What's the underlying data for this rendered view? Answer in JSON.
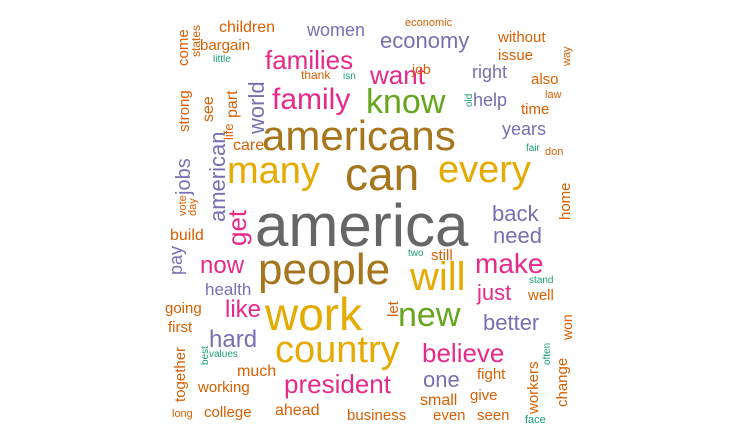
{
  "colors": {
    "gray": "#666666",
    "brown": "#A6761D",
    "gold": "#E6AB02",
    "pink": "#E7298A",
    "green": "#66A61E",
    "purple": "#7570B3",
    "orange": "#D95F02",
    "teal": "#1B9E77"
  },
  "words": [
    {
      "text": "america",
      "color": "gray"
    },
    {
      "text": "americans",
      "color": "brown"
    },
    {
      "text": "people",
      "color": "brown"
    },
    {
      "text": "can",
      "color": "brown"
    },
    {
      "text": "many",
      "color": "gold"
    },
    {
      "text": "every",
      "color": "gold"
    },
    {
      "text": "work",
      "color": "gold"
    },
    {
      "text": "will",
      "color": "gold"
    },
    {
      "text": "country",
      "color": "gold"
    },
    {
      "text": "know",
      "color": "green"
    },
    {
      "text": "new",
      "color": "green"
    },
    {
      "text": "family",
      "color": "pink"
    },
    {
      "text": "families",
      "color": "pink"
    },
    {
      "text": "want",
      "color": "pink"
    },
    {
      "text": "make",
      "color": "pink"
    },
    {
      "text": "president",
      "color": "pink"
    },
    {
      "text": "believe",
      "color": "pink"
    },
    {
      "text": "now",
      "color": "pink"
    },
    {
      "text": "get",
      "color": "pink"
    },
    {
      "text": "like",
      "color": "pink"
    },
    {
      "text": "just",
      "color": "pink"
    },
    {
      "text": "economy",
      "color": "purple"
    },
    {
      "text": "back",
      "color": "purple"
    },
    {
      "text": "need",
      "color": "purple"
    },
    {
      "text": "hard",
      "color": "purple"
    },
    {
      "text": "better",
      "color": "purple"
    },
    {
      "text": "one",
      "color": "purple"
    },
    {
      "text": "american",
      "color": "purple"
    },
    {
      "text": "world",
      "color": "purple"
    },
    {
      "text": "women",
      "color": "purple"
    },
    {
      "text": "help",
      "color": "purple"
    },
    {
      "text": "right",
      "color": "purple"
    },
    {
      "text": "years",
      "color": "purple"
    },
    {
      "text": "jobs",
      "color": "purple"
    },
    {
      "text": "health",
      "color": "purple"
    },
    {
      "text": "pay",
      "color": "purple"
    },
    {
      "text": "children",
      "color": "orange"
    },
    {
      "text": "bargain",
      "color": "orange"
    },
    {
      "text": "come",
      "color": "orange"
    },
    {
      "text": "states",
      "color": "orange"
    },
    {
      "text": "see",
      "color": "orange"
    },
    {
      "text": "part",
      "color": "orange"
    },
    {
      "text": "life",
      "color": "orange"
    },
    {
      "text": "care",
      "color": "orange"
    },
    {
      "text": "strong",
      "color": "orange"
    },
    {
      "text": "economic",
      "color": "orange"
    },
    {
      "text": "thank",
      "color": "orange"
    },
    {
      "text": "job",
      "color": "orange"
    },
    {
      "text": "without",
      "color": "orange"
    },
    {
      "text": "issue",
      "color": "orange"
    },
    {
      "text": "way",
      "color": "orange"
    },
    {
      "text": "also",
      "color": "orange"
    },
    {
      "text": "law",
      "color": "orange"
    },
    {
      "text": "time",
      "color": "orange"
    },
    {
      "text": "don",
      "color": "orange"
    },
    {
      "text": "home",
      "color": "orange"
    },
    {
      "text": "vote",
      "color": "orange"
    },
    {
      "text": "day",
      "color": "orange"
    },
    {
      "text": "build",
      "color": "orange"
    },
    {
      "text": "still",
      "color": "orange"
    },
    {
      "text": "let",
      "color": "orange"
    },
    {
      "text": "well",
      "color": "orange"
    },
    {
      "text": "going",
      "color": "orange"
    },
    {
      "text": "first",
      "color": "orange"
    },
    {
      "text": "together",
      "color": "orange"
    },
    {
      "text": "much",
      "color": "orange"
    },
    {
      "text": "working",
      "color": "orange"
    },
    {
      "text": "long",
      "color": "orange"
    },
    {
      "text": "college",
      "color": "orange"
    },
    {
      "text": "ahead",
      "color": "orange"
    },
    {
      "text": "business",
      "color": "orange"
    },
    {
      "text": "small",
      "color": "orange"
    },
    {
      "text": "even",
      "color": "orange"
    },
    {
      "text": "seen",
      "color": "orange"
    },
    {
      "text": "fight",
      "color": "orange"
    },
    {
      "text": "give",
      "color": "orange"
    },
    {
      "text": "workers",
      "color": "orange"
    },
    {
      "text": "change",
      "color": "orange"
    },
    {
      "text": "won",
      "color": "orange"
    },
    {
      "text": "little",
      "color": "teal"
    },
    {
      "text": "isn",
      "color": "teal"
    },
    {
      "text": "old",
      "color": "teal"
    },
    {
      "text": "fair",
      "color": "teal"
    },
    {
      "text": "two",
      "color": "teal"
    },
    {
      "text": "stand",
      "color": "teal"
    },
    {
      "text": "best",
      "color": "teal"
    },
    {
      "text": "values",
      "color": "teal"
    },
    {
      "text": "often",
      "color": "teal"
    },
    {
      "text": "face",
      "color": "teal"
    }
  ]
}
